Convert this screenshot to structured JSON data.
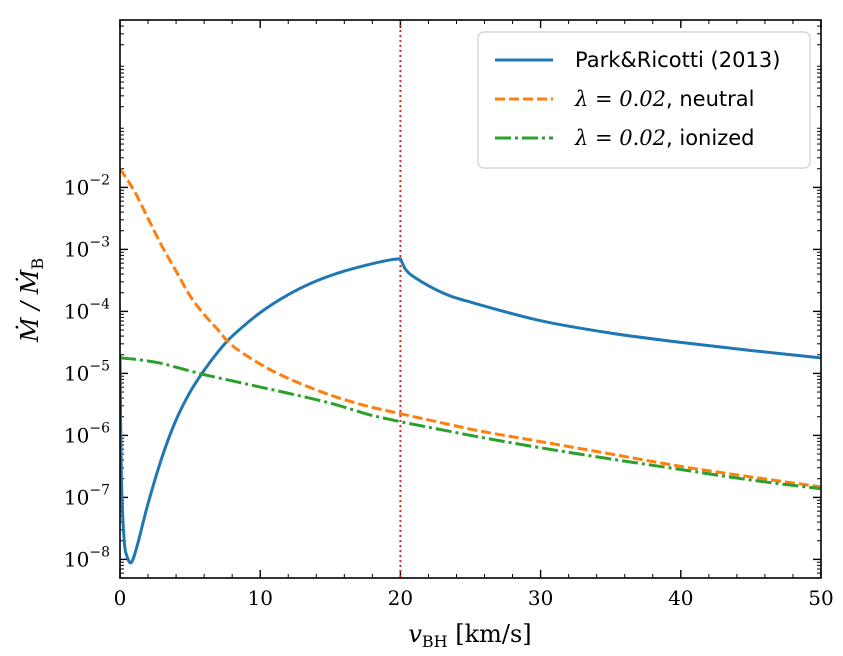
{
  "chart_data": {
    "type": "line",
    "xlabel": "v_BH [km/s]",
    "xlabel_main": "v",
    "xlabel_sub": "BH",
    "xlabel_units": " [km/s]",
    "ylabel": "Ṁ / Ṁ_B",
    "ylabel_main": "Ṁ / Ṁ",
    "ylabel_sub": "B",
    "xlim": [
      0,
      50
    ],
    "ylim_log10": [
      -8.3,
      0.7
    ],
    "yscale": "log",
    "x_ticks": [
      0,
      10,
      20,
      30,
      40,
      50
    ],
    "x_tick_labels": [
      "0",
      "10",
      "20",
      "30",
      "40",
      "50"
    ],
    "y_ticks_log10": [
      -2,
      -3,
      -4,
      -5,
      -6,
      -7,
      -8
    ],
    "y_tick_base": "10",
    "y_tick_exponents": [
      "−2",
      "−3",
      "−4",
      "−5",
      "−6",
      "−7",
      "−8"
    ],
    "vline_x": 20,
    "legend_position": "top-right",
    "series": [
      {
        "name": "Park&Ricotti (2013)",
        "color": "#1f77b4",
        "style": "solid",
        "x": [
          0,
          0.1,
          0.3,
          0.5,
          0.8,
          1.2,
          2,
          3,
          4,
          5,
          6,
          7,
          8,
          10,
          12,
          14,
          16,
          18,
          19.5,
          20,
          20.3,
          21,
          23,
          25,
          30,
          35,
          40,
          45,
          50
        ],
        "log10_y": [
          -4.7,
          -6.7,
          -7.7,
          -7.95,
          -8.05,
          -7.8,
          -7.1,
          -6.35,
          -5.75,
          -5.3,
          -4.95,
          -4.65,
          -4.4,
          -4.02,
          -3.73,
          -3.51,
          -3.35,
          -3.23,
          -3.16,
          -3.15,
          -3.3,
          -3.45,
          -3.7,
          -3.85,
          -4.15,
          -4.35,
          -4.5,
          -4.63,
          -4.75
        ]
      },
      {
        "name": "λ = 0.02, neutral",
        "label_math": "λ = 0.02",
        "label_text": ", neutral",
        "color": "#ff7f0e",
        "style": "dashed",
        "x": [
          0,
          1,
          2,
          3,
          4,
          5,
          6,
          7,
          8,
          10,
          12,
          15,
          18,
          20,
          25,
          30,
          35,
          40,
          45,
          50
        ],
        "log10_y": [
          -1.7,
          -2.05,
          -2.5,
          -2.95,
          -3.35,
          -3.75,
          -4.05,
          -4.3,
          -4.55,
          -4.85,
          -5.08,
          -5.35,
          -5.55,
          -5.65,
          -5.9,
          -6.1,
          -6.3,
          -6.5,
          -6.67,
          -6.83
        ]
      },
      {
        "name": "λ = 0.02, ionized",
        "label_math": "λ = 0.02",
        "label_text": ", ionized",
        "color": "#2ca02c",
        "style": "dashdot",
        "x": [
          0,
          1,
          2,
          3,
          4,
          5,
          6,
          8,
          10,
          12,
          15,
          18,
          20,
          25,
          30,
          35,
          40,
          45,
          50
        ],
        "log10_y": [
          -4.75,
          -4.77,
          -4.8,
          -4.84,
          -4.9,
          -4.96,
          -5.02,
          -5.12,
          -5.22,
          -5.32,
          -5.48,
          -5.68,
          -5.78,
          -6.0,
          -6.2,
          -6.38,
          -6.55,
          -6.72,
          -6.86
        ]
      }
    ]
  }
}
